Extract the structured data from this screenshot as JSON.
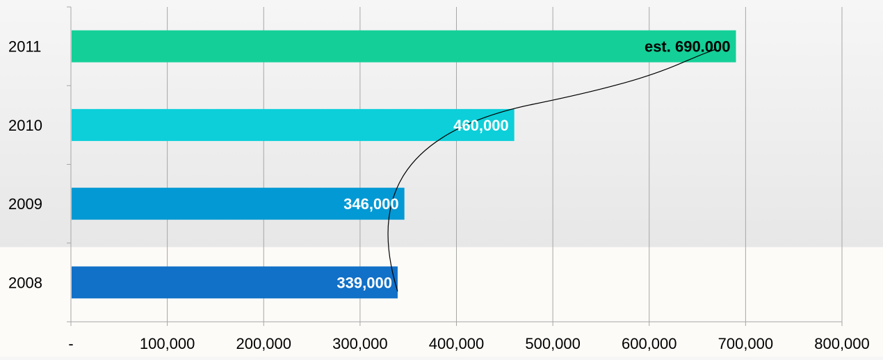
{
  "chart_data": {
    "type": "bar",
    "orientation": "horizontal",
    "categories": [
      "2008",
      "2009",
      "2010",
      "2011"
    ],
    "values": [
      339000,
      346000,
      460000,
      690000
    ],
    "data_labels": [
      "339,000",
      "346,000",
      "460,000",
      "est.  690.000"
    ],
    "bar_colors": [
      "#1170c7",
      "#0399d4",
      "#0ccfd9",
      "#14d098"
    ],
    "data_label_colors": [
      "#ffffff",
      "#ffffff",
      "#ffffff",
      "#000000"
    ],
    "xlim": [
      0,
      800000
    ],
    "xticks": [
      0,
      100000,
      200000,
      300000,
      400000,
      500000,
      600000,
      700000,
      800000
    ],
    "xtick_labels": [
      "-",
      "100,000",
      "200,000",
      "300,000",
      "400,000",
      "500,000",
      "600,000",
      "700,000",
      "800,000"
    ],
    "grid": "vertical",
    "legend": "none",
    "annotation": "curved trend line from the 2008 bar end to the 2011 bar end",
    "gridline_color": "#a6a6a6",
    "text_color": "#000000"
  }
}
